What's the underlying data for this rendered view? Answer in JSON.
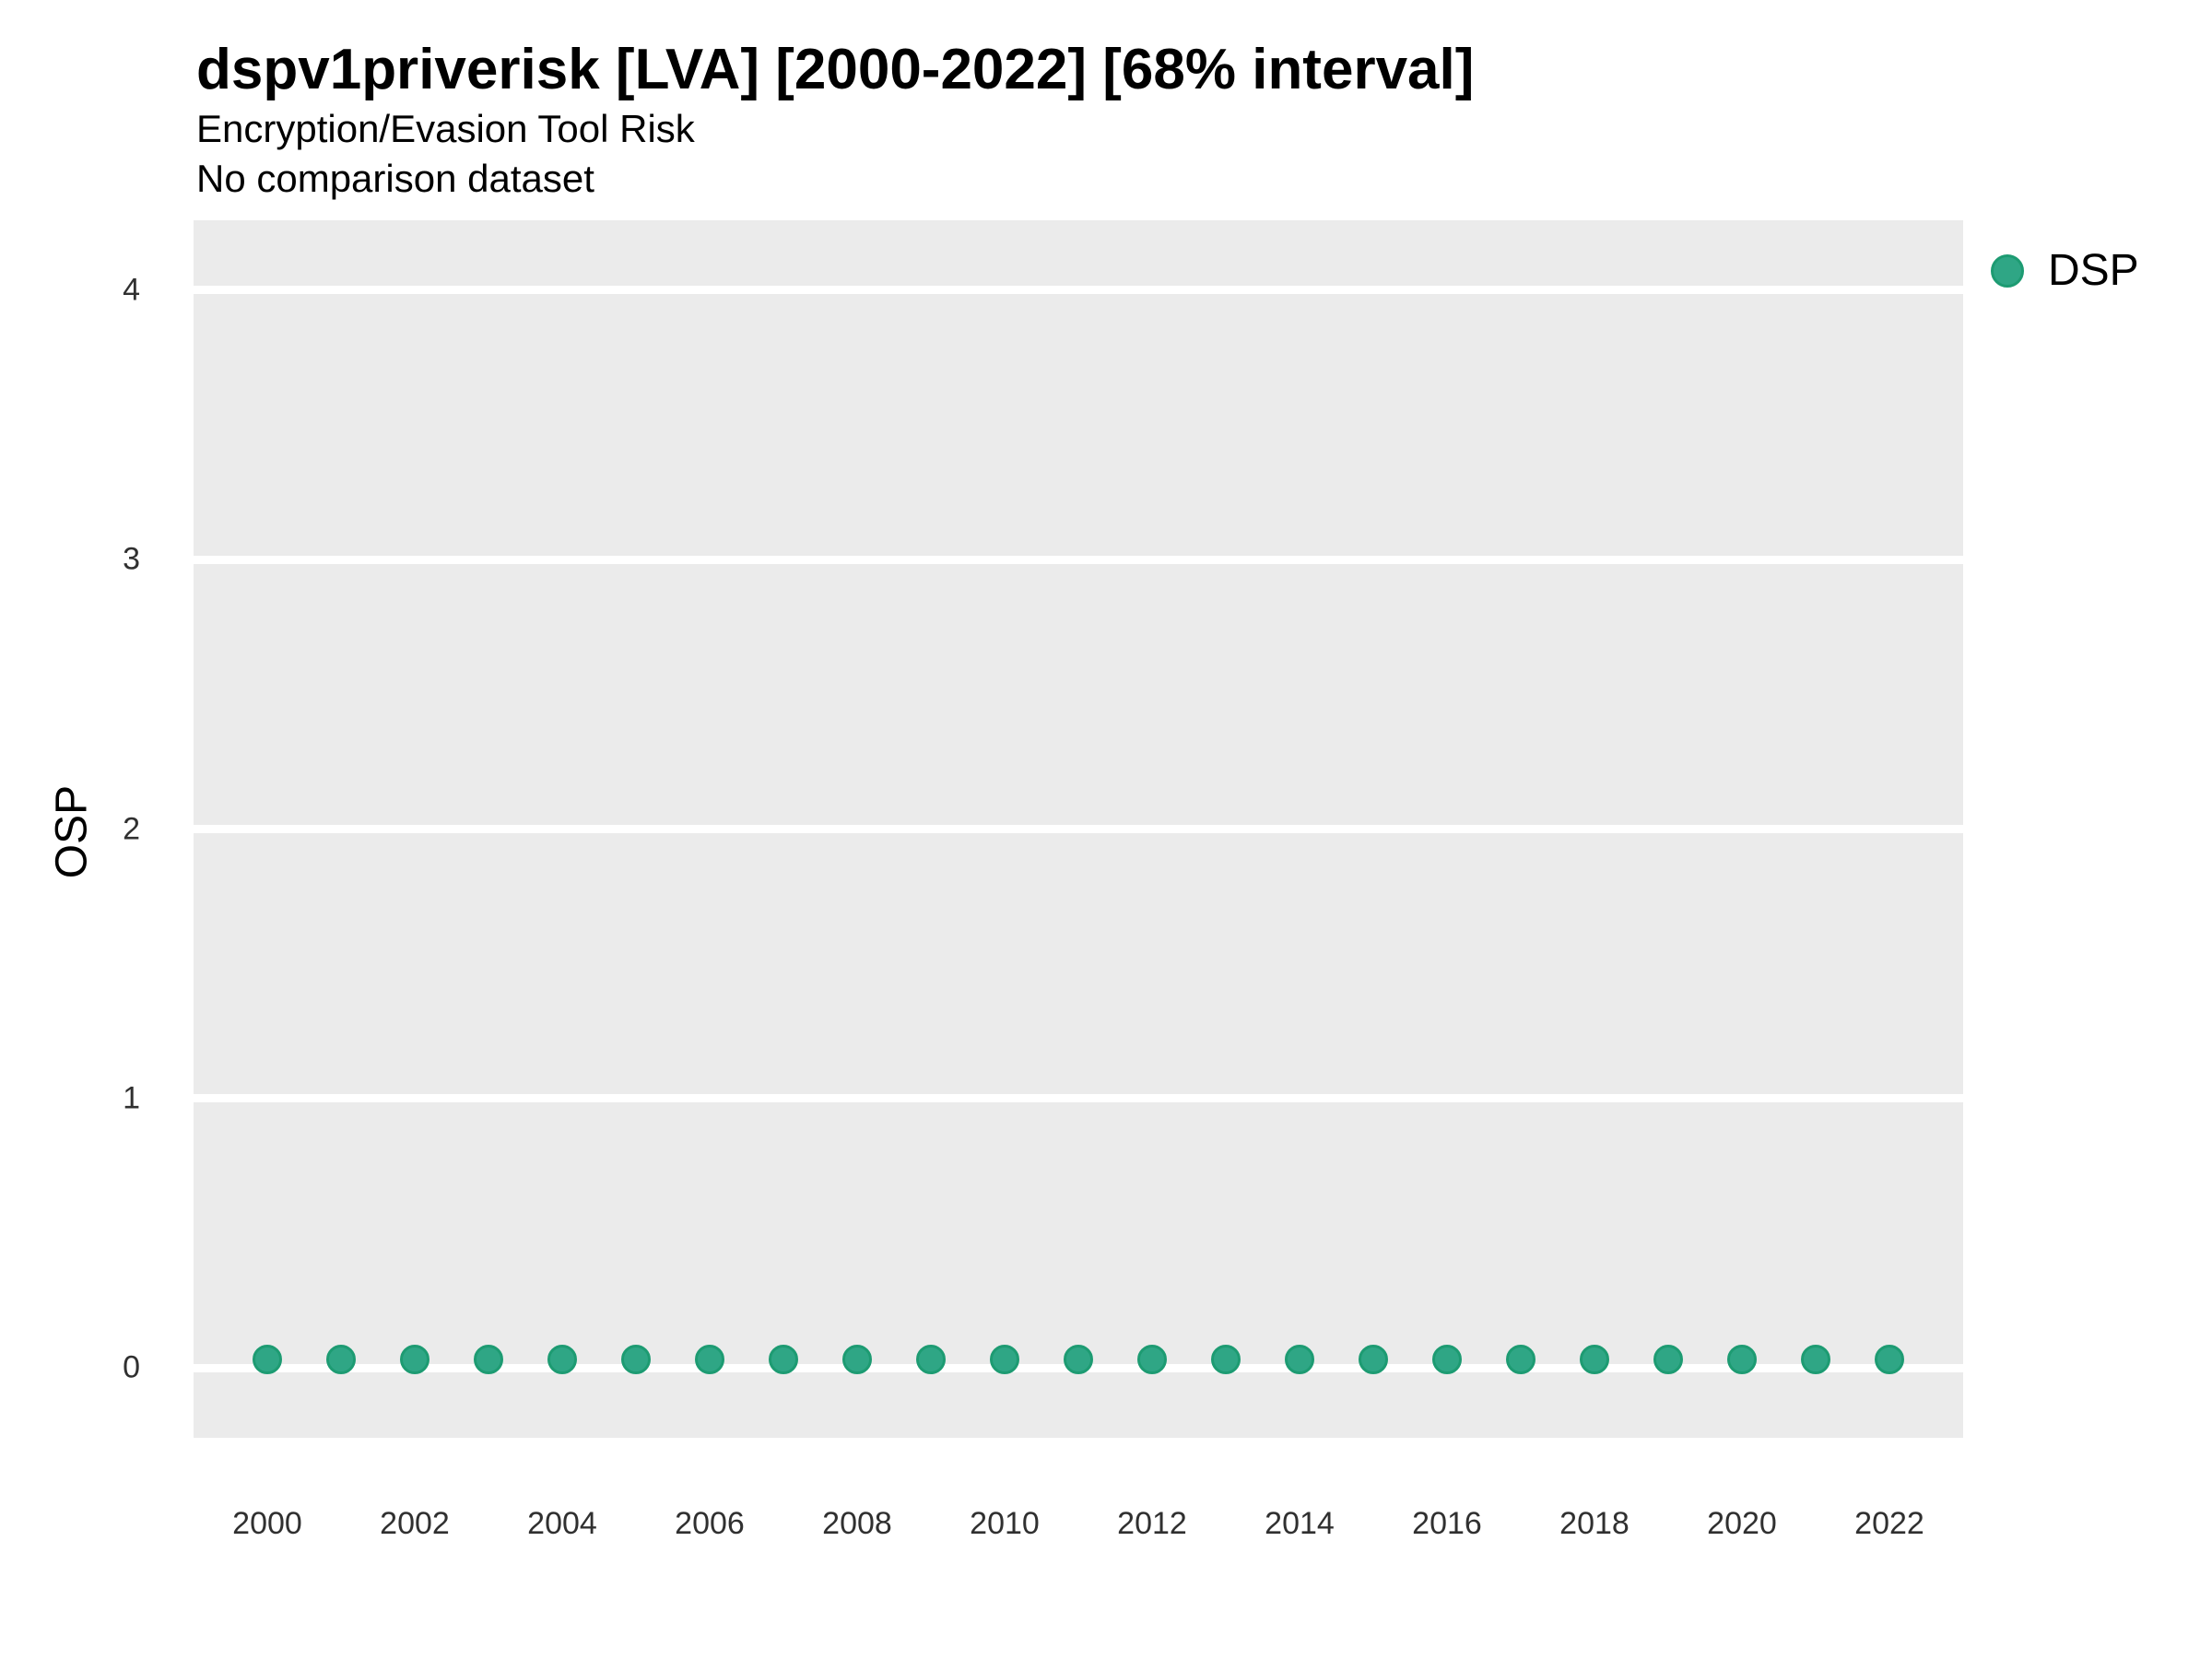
{
  "colors": {
    "panel_bg": "#EBEBEB",
    "gridline": "#FFFFFF",
    "point_fill": "#2FA685",
    "point_stroke": "#1D9B72",
    "title_text": "#000000",
    "tick_text": "#303030"
  },
  "legend": {
    "position": "right",
    "items": [
      {
        "label": "DSP",
        "color": "#2FA685"
      }
    ]
  },
  "chart_data": {
    "type": "scatter",
    "title": "dspv1priverisk [LVA] [2000-2022] [68% interval]",
    "subtitle": "Encryption/Evasion Tool Risk",
    "note": "No comparison dataset",
    "xlabel": "",
    "ylabel": "OSP",
    "x": [
      2000,
      2001,
      2002,
      2003,
      2004,
      2005,
      2006,
      2007,
      2008,
      2009,
      2010,
      2011,
      2012,
      2013,
      2014,
      2015,
      2016,
      2017,
      2018,
      2019,
      2020,
      2021,
      2022
    ],
    "series": [
      {
        "name": "DSP",
        "values": [
          0.03,
          0.03,
          0.03,
          0.03,
          0.03,
          0.03,
          0.03,
          0.03,
          0.03,
          0.03,
          0.03,
          0.03,
          0.03,
          0.03,
          0.03,
          0.03,
          0.03,
          0.03,
          0.03,
          0.03,
          0.03,
          0.03,
          0.03
        ]
      }
    ],
    "xticks": [
      2000,
      2002,
      2004,
      2006,
      2008,
      2010,
      2012,
      2014,
      2016,
      2018,
      2020,
      2022
    ],
    "yticks": [
      0,
      1,
      2,
      3,
      4
    ],
    "xlim": [
      1999,
      2023
    ],
    "ylim": [
      -0.26,
      4.26
    ],
    "grid": "horizontal-major-only",
    "legend_position": "right"
  }
}
